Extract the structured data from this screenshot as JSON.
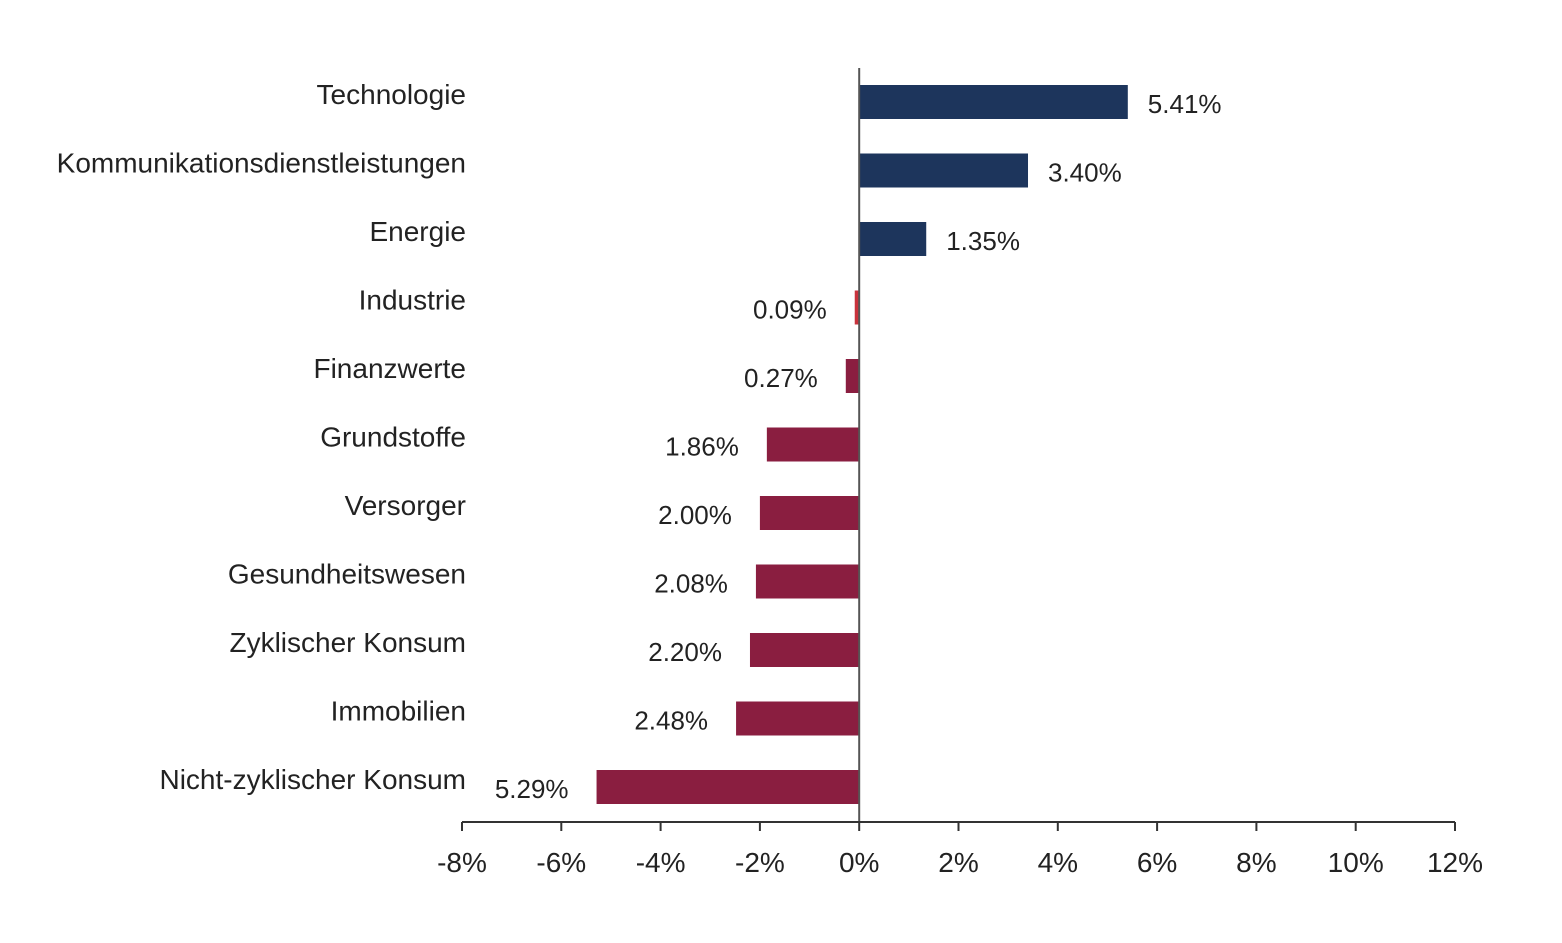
{
  "chart_data": {
    "type": "bar",
    "orientation": "horizontal",
    "title": "",
    "xlabel": "",
    "ylabel": "",
    "xlim": [
      -8,
      12
    ],
    "grid": false,
    "legend": "none",
    "categories": [
      "Technologie",
      "Kommunikationsdienstleistungen",
      "Energie",
      "Industrie",
      "Finanzwerte",
      "Grundstoffe",
      "Versorger",
      "Gesundheitswesen",
      "Zyklischer Konsum",
      "Immobilien",
      "Nicht-zyklischer Konsum"
    ],
    "values": [
      5.41,
      3.4,
      1.35,
      -0.09,
      -0.27,
      -1.86,
      -2.0,
      -2.08,
      -2.2,
      -2.48,
      -5.29
    ],
    "value_labels": [
      "5.41%",
      "3.40%",
      "1.35%",
      "0.09%",
      "0.27%",
      "1.86%",
      "2.00%",
      "2.08%",
      "2.20%",
      "2.48%",
      "5.29%"
    ],
    "x_ticks": [
      -8,
      -6,
      -4,
      -2,
      0,
      2,
      4,
      6,
      8,
      10,
      12
    ],
    "x_tick_labels": [
      "-8%",
      "-6%",
      "-4%",
      "-2%",
      "0%",
      "2%",
      "4%",
      "6%",
      "8%",
      "10%",
      "12%"
    ],
    "colors": {
      "positive": "#1d355c",
      "negative": "#8a1e40",
      "industrie": "#c8323c",
      "axis": "#555555"
    }
  }
}
